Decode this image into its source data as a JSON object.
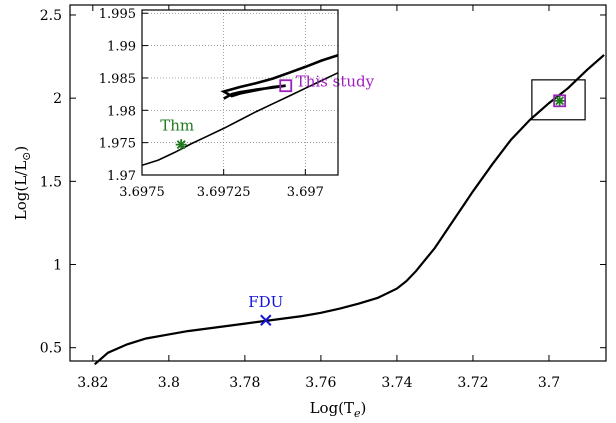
{
  "chart_data": [
    {
      "type": "line",
      "xlabel": "Log(T",
      "xlabel_sub": "e",
      "xlabel_end": ")",
      "ylabel": "Log(L/L",
      "ylabel_sym": "⊙",
      "ylabel_end": ")",
      "xlim": [
        3.826,
        3.685
      ],
      "ylim": [
        0.42,
        2.56
      ],
      "x_reversed": true,
      "grid": false,
      "x_ticks": [
        3.82,
        3.8,
        3.78,
        3.76,
        3.74,
        3.72,
        3.7
      ],
      "x_tick_labels": [
        "3.82",
        "3.8",
        "3.78",
        "3.76",
        "3.74",
        "3.72",
        "3.7"
      ],
      "y_ticks": [
        0.5,
        1,
        1.5,
        2,
        2.5
      ],
      "y_tick_labels": [
        "0.5",
        "1",
        "1.5",
        "2",
        "2.5"
      ],
      "series": [
        {
          "x": [
            3.8195,
            3.816,
            3.811,
            3.806,
            3.8,
            3.795,
            3.79,
            3.785,
            3.78,
            3.775,
            3.77,
            3.765,
            3.76,
            3.755,
            3.75,
            3.745,
            3.74,
            3.7375,
            3.735,
            3.73,
            3.725,
            3.72,
            3.715,
            3.71,
            3.705,
            3.7,
            3.695,
            3.69,
            3.6855
          ],
          "y": [
            0.4,
            0.47,
            0.52,
            0.555,
            0.58,
            0.6,
            0.615,
            0.63,
            0.645,
            0.66,
            0.675,
            0.69,
            0.71,
            0.735,
            0.765,
            0.8,
            0.855,
            0.9,
            0.96,
            1.1,
            1.27,
            1.44,
            1.6,
            1.75,
            1.87,
            1.97,
            2.06,
            2.17,
            2.26
          ],
          "color": "#000000"
        }
      ],
      "markers": [
        {
          "label": "FDU",
          "x": 3.7745,
          "y": 0.665,
          "symbol": "x",
          "color": "#1515d8"
        },
        {
          "label": "",
          "x": 3.6972,
          "y": 1.984,
          "symbol": "square",
          "color": "#9e1fbf"
        },
        {
          "label": "",
          "x": 3.6972,
          "y": 1.984,
          "symbol": "star",
          "color": "#1f7a1f"
        }
      ],
      "zoom_box": {
        "x": [
          3.7045,
          3.6905
        ],
        "y": [
          1.87,
          2.11
        ]
      }
    },
    {
      "type": "line",
      "xlim": [
        3.6975,
        3.6969
      ],
      "ylim": [
        1.97,
        1.9955
      ],
      "x_reversed": true,
      "grid": true,
      "x_ticks": [
        3.6975,
        3.69725,
        3.697
      ],
      "x_tick_labels": [
        "3.6975",
        "3.69725",
        "3.697"
      ],
      "y_ticks": [
        1.97,
        1.975,
        1.98,
        1.985,
        1.99,
        1.995
      ],
      "y_tick_labels": [
        "1.97",
        "1.975",
        "1.98",
        "1.985",
        "1.99",
        "1.995"
      ],
      "series": [
        {
          "x": [
            3.6975,
            3.69745,
            3.6974,
            3.69735,
            3.6973,
            3.69725,
            3.6972,
            3.69715,
            3.6971,
            3.69705,
            3.697,
            3.69695,
            3.6969
          ],
          "y": [
            1.9715,
            1.9723,
            1.9735,
            1.9748,
            1.976,
            1.9772,
            1.9785,
            1.9798,
            1.981,
            1.9822,
            1.9834,
            1.9846,
            1.9858
          ],
          "color": "#000000"
        },
        {
          "x": [
            3.69725,
            3.697225,
            3.6972,
            3.69715,
            3.6971,
            3.69706,
            3.6971,
            3.69715,
            3.6972,
            3.697225,
            3.69725,
            3.6972,
            3.69715,
            3.6971,
            3.69705,
            3.697,
            3.69695,
            3.6969
          ],
          "y": [
            1.9818,
            1.9825,
            1.9828,
            1.9832,
            1.9835,
            1.9838,
            1.9836,
            1.9831,
            1.9826,
            1.9822,
            1.9829,
            1.9836,
            1.9842,
            1.9849,
            1.9858,
            1.9867,
            1.9877,
            1.9885
          ],
          "color": "#000000"
        }
      ],
      "markers": [
        {
          "label": "Thm",
          "x": 3.69738,
          "y": 1.9747,
          "symbol": "star",
          "color": "#1f7a1f"
        },
        {
          "label": "This study",
          "x": 3.69706,
          "y": 1.9838,
          "symbol": "square",
          "color": "#9e1fbf"
        }
      ]
    }
  ]
}
